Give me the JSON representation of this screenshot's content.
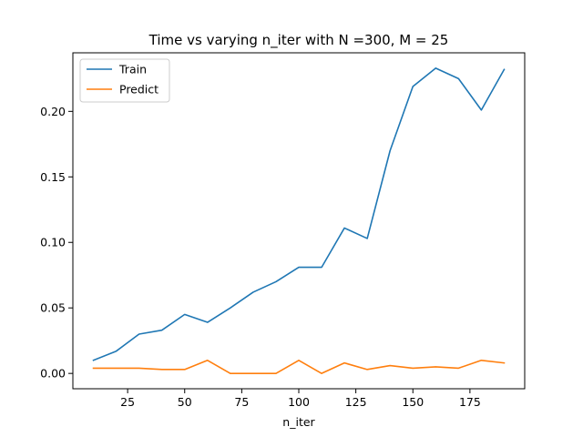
{
  "chart_data": {
    "type": "line",
    "title": "Time vs varying n_iter with N =300, M = 25",
    "xlabel": "n_iter",
    "ylabel": "",
    "x": [
      10,
      20,
      30,
      40,
      50,
      60,
      70,
      80,
      90,
      100,
      110,
      120,
      130,
      140,
      150,
      160,
      170,
      180,
      190
    ],
    "series": [
      {
        "name": "Train",
        "color": "#1f77b4",
        "values": [
          0.01,
          0.017,
          0.03,
          0.033,
          0.045,
          0.039,
          0.05,
          0.062,
          0.07,
          0.081,
          0.081,
          0.111,
          0.103,
          0.17,
          0.219,
          0.233,
          0.225,
          0.201,
          0.232
        ]
      },
      {
        "name": "Predict",
        "color": "#ff7f0e",
        "values": [
          0.004,
          0.004,
          0.004,
          0.003,
          0.003,
          0.01,
          0.0,
          0.0,
          0.0,
          0.01,
          0.0,
          0.008,
          0.003,
          0.006,
          0.004,
          0.005,
          0.004,
          0.01,
          0.008
        ]
      }
    ],
    "xlim": [
      1,
      199
    ],
    "ylim": [
      -0.0117,
      0.2447
    ],
    "xticks": [
      25,
      50,
      75,
      100,
      125,
      150,
      175
    ],
    "xtick_labels": [
      "25",
      "50",
      "75",
      "100",
      "125",
      "150",
      "175"
    ],
    "yticks": [
      0.0,
      0.05,
      0.1,
      0.15,
      0.2
    ],
    "ytick_labels": [
      "0.00",
      "0.05",
      "0.10",
      "0.15",
      "0.20"
    ],
    "grid": false,
    "legend": "top-left"
  }
}
